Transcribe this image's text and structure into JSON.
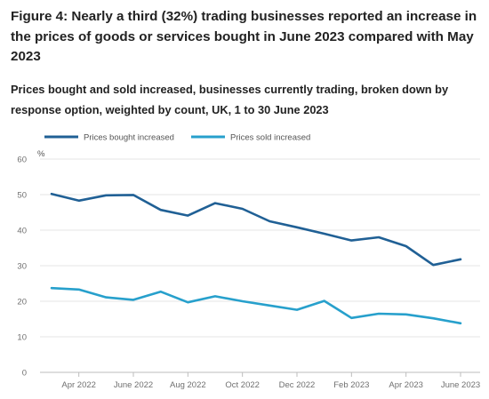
{
  "title": "Figure 4: Nearly a third (32%) trading businesses reported an increase in the prices of goods or services bought in June 2023 compared with May 2023",
  "subtitle": "Prices bought and sold increased, businesses currently trading, broken down by response option, weighted by count, UK, 1 to 30 June 2023",
  "chart_data": {
    "type": "line",
    "y_unit": "%",
    "ylim": [
      0,
      60
    ],
    "y_ticks": [
      0,
      10,
      20,
      30,
      40,
      50,
      60
    ],
    "x_ticks": [
      "Apr 2022",
      "June 2022",
      "Aug 2022",
      "Oct 2022",
      "Dec 2022",
      "Feb 2023",
      "Apr 2023",
      "June 2023"
    ],
    "legend_position": "top-left",
    "grid": "horizontal",
    "x": [
      "Mar 2022",
      "Apr 2022",
      "May 2022",
      "June 2022",
      "July 2022",
      "Aug 2022",
      "Sept 2022",
      "Oct 2022",
      "Nov 2022",
      "Dec 2022",
      "Jan 2023",
      "Feb 2023",
      "Mar 2023",
      "Apr 2023",
      "May 2023",
      "June 2023"
    ],
    "series": [
      {
        "name": "Prices bought increased",
        "color": "#206095",
        "values": [
          50.2,
          48.3,
          49.8,
          49.9,
          45.7,
          44.1,
          47.6,
          46.0,
          42.5,
          40.8,
          39.0,
          37.1,
          38.0,
          35.5,
          30.2,
          31.8
        ]
      },
      {
        "name": "Prices sold increased",
        "color": "#27a0cc",
        "values": [
          23.7,
          23.3,
          21.1,
          20.4,
          22.7,
          19.7,
          21.4,
          20.0,
          18.8,
          17.6,
          20.1,
          15.3,
          16.5,
          16.3,
          15.2,
          13.8
        ]
      }
    ]
  }
}
